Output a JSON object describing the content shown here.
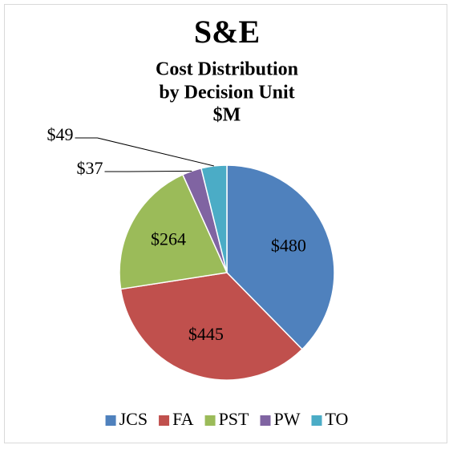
{
  "chart_data": {
    "type": "pie",
    "title": "S&E",
    "subtitle": [
      "Cost Distribution",
      "by Decision Unit",
      "$M"
    ],
    "categories": [
      "JCS",
      "FA",
      "PST",
      "PW",
      "TO"
    ],
    "values": [
      480,
      445,
      264,
      37,
      49
    ],
    "value_labels": [
      "$480",
      "$445",
      "$264",
      "$37",
      "$49"
    ],
    "colors": [
      "#4f81bd",
      "#c0504d",
      "#9bbb59",
      "#8064a2",
      "#4bacc6"
    ],
    "legend": "bottom"
  }
}
